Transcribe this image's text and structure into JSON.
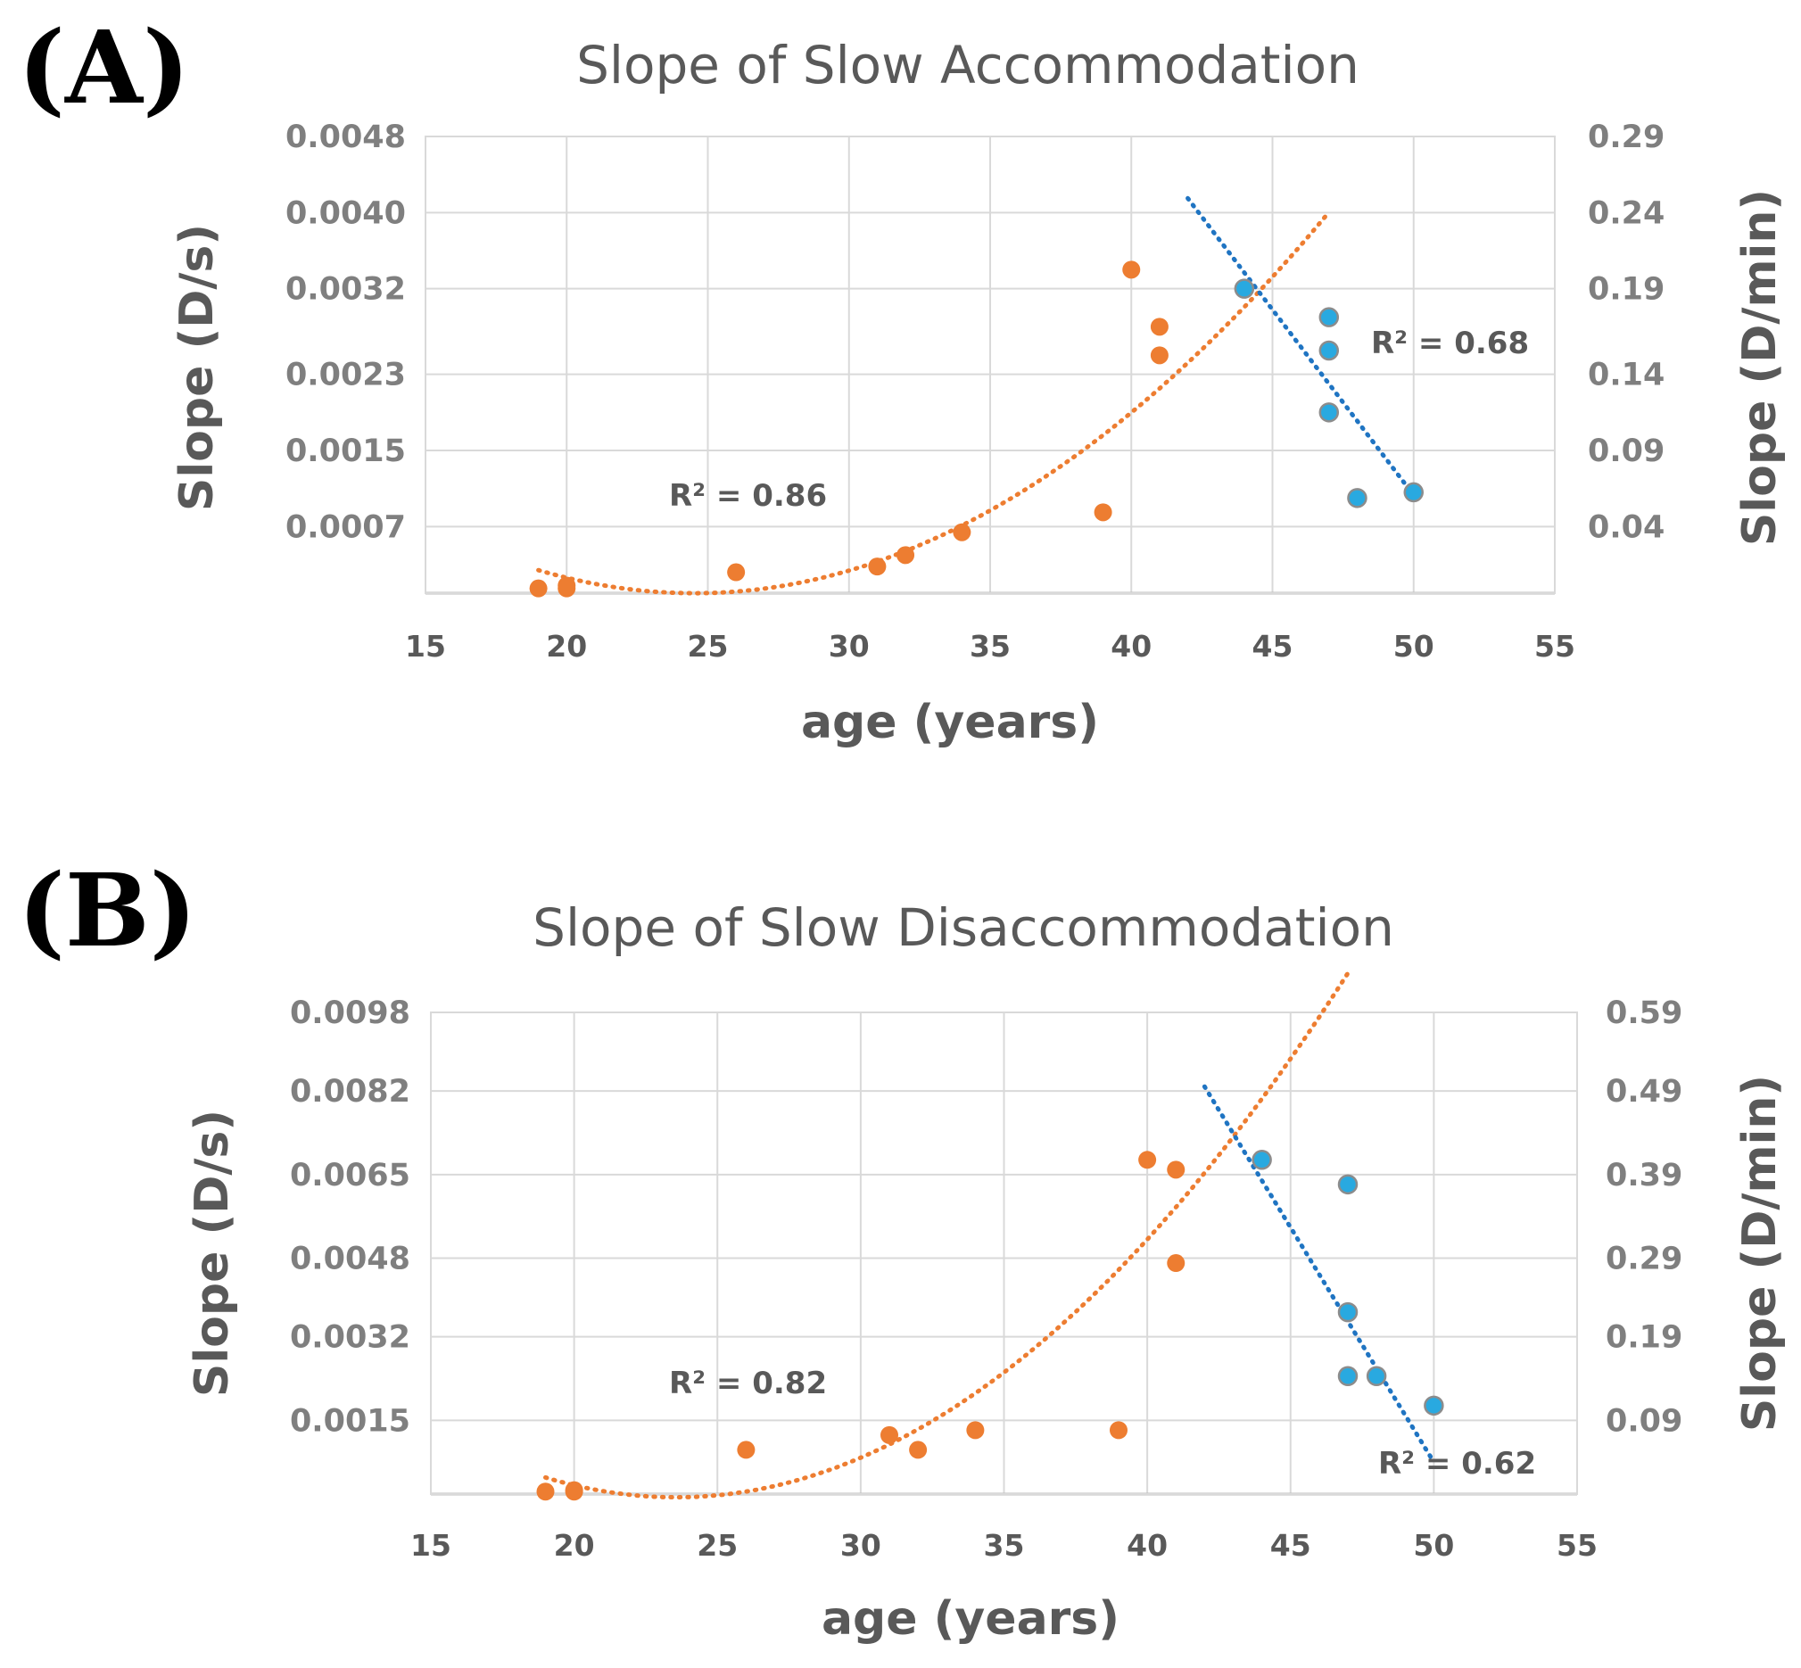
{
  "colors": {
    "orange": "#ed7d31",
    "blue": "#29a9e0",
    "blue_trend": "#1f74c2",
    "text": "#595959"
  },
  "chart_data": [
    {
      "panel": "(A)",
      "type": "scatter",
      "title": "Slope of Slow Accommodation",
      "xlabel": "age (years)",
      "ylabel_left": "Slope  (D/s)",
      "ylabel_right": "Slope  (D/min)",
      "xlim": [
        15,
        55
      ],
      "x_ticks": [
        "15",
        "20",
        "25",
        "30",
        "35",
        "40",
        "45",
        "50",
        "55"
      ],
      "ylim": [
        0,
        0.0048
      ],
      "y_left_ticks": [
        "0.0007",
        "0.0015",
        "0.0023",
        "0.0032",
        "0.0040",
        "0.0048"
      ],
      "y_right_ticks": [
        "0.04",
        "0.09",
        "0.14",
        "0.19",
        "0.24",
        "0.29"
      ],
      "series": [
        {
          "name": "orange",
          "color": "#ed7d31",
          "points": [
            [
              19,
              5e-05
            ],
            [
              20,
              5e-05
            ],
            [
              20,
              8e-05
            ],
            [
              26,
              0.00022
            ],
            [
              31,
              0.00028
            ],
            [
              32,
              0.0004
            ],
            [
              34,
              0.00064
            ],
            [
              39,
              0.00085
            ],
            [
              40,
              0.0034
            ],
            [
              41,
              0.0028
            ],
            [
              41,
              0.0025
            ]
          ],
          "trend": {
            "kind": "polynomial",
            "coef": [
              7.93e-06,
              -0.000389,
              0.00477
            ],
            "x_range": [
              19,
              47
            ],
            "r2_label": "R² = 0.86"
          }
        },
        {
          "name": "blue",
          "color": "#29a9e0",
          "points": [
            [
              44,
              0.0032
            ],
            [
              47,
              0.0029
            ],
            [
              47,
              0.00255
            ],
            [
              47,
              0.0019
            ],
            [
              48,
              0.001
            ],
            [
              50,
              0.00106
            ]
          ],
          "trend": {
            "kind": "linear",
            "coef": [
              -0.00039,
              0.02053
            ],
            "x_range": [
              42,
              50
            ],
            "r2_label": "R² = 0.68"
          }
        }
      ]
    },
    {
      "panel": "(B)",
      "type": "scatter",
      "title": "Slope of Slow Disaccommodation",
      "xlabel": "age (years)",
      "ylabel_left": "Slope  (D/s)",
      "ylabel_right": "Slope  (D/min)",
      "xlim": [
        15,
        55
      ],
      "x_ticks": [
        "15",
        "20",
        "25",
        "30",
        "35",
        "40",
        "45",
        "50",
        "55"
      ],
      "ylim": [
        0,
        0.0098
      ],
      "y_left_ticks": [
        "0.0015",
        "0.0032",
        "0.0048",
        "0.0065",
        "0.0082",
        "0.0098"
      ],
      "y_right_ticks": [
        "0.09",
        "0.19",
        "0.29",
        "0.39",
        "0.49",
        "0.59"
      ],
      "series": [
        {
          "name": "orange",
          "color": "#ed7d31",
          "points": [
            [
              19,
              5e-05
            ],
            [
              20,
              5e-05
            ],
            [
              20,
              8e-05
            ],
            [
              26,
              0.0009
            ],
            [
              31,
              0.0012
            ],
            [
              32,
              0.0009
            ],
            [
              34,
              0.0013
            ],
            [
              39,
              0.0013
            ],
            [
              40,
              0.0068
            ],
            [
              41,
              0.0066
            ],
            [
              41,
              0.0047
            ]
          ],
          "trend": {
            "kind": "polynomial",
            "coef": [
              1.94e-05,
              -0.000914,
              0.0107
            ],
            "x_range": [
              19,
              47
            ],
            "r2_label": "R² = 0.82"
          }
        },
        {
          "name": "blue",
          "color": "#29a9e0",
          "points": [
            [
              44,
              0.0068
            ],
            [
              47,
              0.0063
            ],
            [
              47,
              0.0037
            ],
            [
              47,
              0.0024
            ],
            [
              48,
              0.0024
            ],
            [
              50,
              0.0018
            ]
          ],
          "trend": {
            "kind": "linear",
            "coef": [
              -0.000955,
              0.0484
            ],
            "x_range": [
              42,
              50
            ],
            "r2_label": "R² = 0.62"
          }
        }
      ]
    }
  ]
}
